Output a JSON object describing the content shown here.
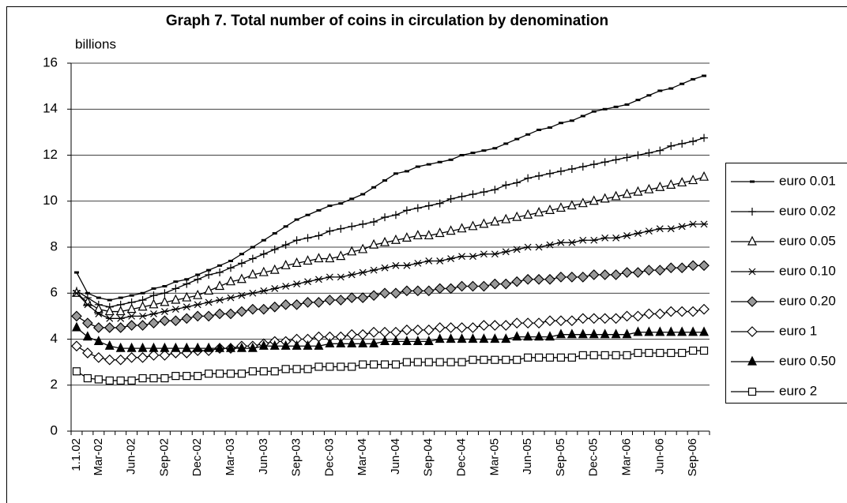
{
  "chart_data": {
    "type": "line",
    "title": "Graph 7. Total number of coins in circulation by denomination",
    "y_label": "billions",
    "categories": [
      "1.1.02",
      null,
      "Mar-02",
      null,
      null,
      "Jun-02",
      null,
      null,
      "Sep-02",
      null,
      null,
      "Dec-02",
      null,
      null,
      "Mar-03",
      null,
      null,
      "Jun-03",
      null,
      null,
      "Sep-03",
      null,
      null,
      "Dec-03",
      null,
      null,
      "Mar-04",
      null,
      null,
      "Jun-04",
      null,
      null,
      "Sep-04",
      null,
      null,
      "Dec-04",
      null,
      null,
      "Mar-05",
      null,
      null,
      "Jun-05",
      null,
      null,
      "Sep-05",
      null,
      null,
      "Dec-05",
      null,
      null,
      "Mar-06",
      null,
      null,
      "Jun-06",
      null,
      null,
      "Sep-06",
      null
    ],
    "ylim": [
      0,
      16
    ],
    "yticks": [
      0,
      2,
      4,
      6,
      8,
      10,
      12,
      14,
      16
    ],
    "grid": true,
    "legend": "right",
    "series": [
      {
        "name": "euro 0.01",
        "color": "#000000",
        "marker": "dash",
        "values": [
          6.9,
          6.0,
          5.8,
          5.7,
          5.8,
          5.9,
          6.0,
          6.2,
          6.3,
          6.5,
          6.6,
          6.8,
          7.0,
          7.2,
          7.4,
          7.7,
          8.0,
          8.3,
          8.6,
          8.9,
          9.2,
          9.4,
          9.6,
          9.8,
          9.9,
          10.1,
          10.3,
          10.6,
          10.9,
          11.2,
          11.3,
          11.5,
          11.6,
          11.7,
          11.8,
          12.0,
          12.1,
          12.2,
          12.3,
          12.5,
          12.7,
          12.9,
          13.1,
          13.2,
          13.4,
          13.5,
          13.7,
          13.9,
          14.0,
          14.1,
          14.2,
          14.4,
          14.6,
          14.8,
          14.9,
          15.1,
          15.3,
          15.45
        ]
      },
      {
        "name": "euro 0.02",
        "color": "#000000",
        "marker": "plus",
        "values": [
          6.1,
          5.8,
          5.5,
          5.4,
          5.5,
          5.6,
          5.7,
          5.9,
          6.0,
          6.2,
          6.4,
          6.6,
          6.8,
          6.9,
          7.1,
          7.3,
          7.5,
          7.7,
          7.9,
          8.1,
          8.3,
          8.4,
          8.5,
          8.7,
          8.8,
          8.9,
          9.0,
          9.1,
          9.3,
          9.4,
          9.6,
          9.7,
          9.8,
          9.9,
          10.1,
          10.2,
          10.3,
          10.4,
          10.5,
          10.7,
          10.8,
          11.0,
          11.1,
          11.2,
          11.3,
          11.4,
          11.5,
          11.6,
          11.7,
          11.8,
          11.9,
          12.0,
          12.1,
          12.2,
          12.4,
          12.5,
          12.6,
          12.75
        ]
      },
      {
        "name": "euro 0.05",
        "color": "#000000",
        "marker": "triangle-open",
        "values": [
          6.0,
          5.6,
          5.3,
          5.2,
          5.2,
          5.3,
          5.4,
          5.5,
          5.6,
          5.7,
          5.8,
          5.9,
          6.1,
          6.3,
          6.5,
          6.6,
          6.8,
          6.9,
          7.0,
          7.2,
          7.3,
          7.4,
          7.5,
          7.5,
          7.6,
          7.8,
          7.9,
          8.1,
          8.2,
          8.3,
          8.4,
          8.5,
          8.5,
          8.6,
          8.7,
          8.8,
          8.9,
          9.0,
          9.1,
          9.2,
          9.3,
          9.4,
          9.5,
          9.6,
          9.7,
          9.8,
          9.9,
          10.0,
          10.1,
          10.2,
          10.3,
          10.4,
          10.5,
          10.6,
          10.7,
          10.8,
          10.9,
          11.05
        ]
      },
      {
        "name": "euro 0.10",
        "color": "#000000",
        "marker": "star",
        "values": [
          6.0,
          5.5,
          5.1,
          4.9,
          4.9,
          5.0,
          5.0,
          5.1,
          5.2,
          5.3,
          5.4,
          5.5,
          5.6,
          5.7,
          5.8,
          5.9,
          6.0,
          6.1,
          6.2,
          6.3,
          6.4,
          6.5,
          6.6,
          6.7,
          6.7,
          6.8,
          6.9,
          7.0,
          7.1,
          7.2,
          7.2,
          7.3,
          7.4,
          7.4,
          7.5,
          7.6,
          7.6,
          7.7,
          7.7,
          7.8,
          7.9,
          8.0,
          8.0,
          8.1,
          8.2,
          8.2,
          8.3,
          8.3,
          8.4,
          8.4,
          8.5,
          8.6,
          8.7,
          8.8,
          8.8,
          8.9,
          9.0,
          9.0
        ]
      },
      {
        "name": "euro 0.20",
        "color": "#000000",
        "marker": "diamond-gray",
        "values": [
          5.0,
          4.7,
          4.5,
          4.5,
          4.5,
          4.6,
          4.6,
          4.7,
          4.8,
          4.8,
          4.9,
          5.0,
          5.0,
          5.1,
          5.1,
          5.2,
          5.3,
          5.3,
          5.4,
          5.5,
          5.5,
          5.6,
          5.6,
          5.7,
          5.7,
          5.8,
          5.8,
          5.9,
          6.0,
          6.0,
          6.1,
          6.1,
          6.1,
          6.2,
          6.2,
          6.3,
          6.3,
          6.3,
          6.4,
          6.4,
          6.5,
          6.6,
          6.6,
          6.6,
          6.7,
          6.7,
          6.7,
          6.8,
          6.8,
          6.8,
          6.9,
          6.9,
          7.0,
          7.0,
          7.1,
          7.1,
          7.2,
          7.2
        ]
      },
      {
        "name": "euro 1",
        "color": "#000000",
        "marker": "diamond-open",
        "values": [
          3.7,
          3.4,
          3.2,
          3.1,
          3.1,
          3.2,
          3.2,
          3.3,
          3.3,
          3.4,
          3.4,
          3.5,
          3.5,
          3.6,
          3.6,
          3.7,
          3.7,
          3.8,
          3.9,
          3.9,
          4.0,
          4.0,
          4.1,
          4.1,
          4.1,
          4.2,
          4.2,
          4.3,
          4.3,
          4.3,
          4.4,
          4.4,
          4.4,
          4.5,
          4.5,
          4.5,
          4.5,
          4.6,
          4.6,
          4.6,
          4.7,
          4.7,
          4.7,
          4.8,
          4.8,
          4.8,
          4.9,
          4.9,
          4.9,
          4.9,
          5.0,
          5.0,
          5.1,
          5.1,
          5.2,
          5.2,
          5.2,
          5.3
        ]
      },
      {
        "name": "euro 0.50",
        "color": "#000000",
        "marker": "triangle-filled",
        "values": [
          4.5,
          4.1,
          3.9,
          3.7,
          3.6,
          3.6,
          3.6,
          3.6,
          3.6,
          3.6,
          3.6,
          3.6,
          3.6,
          3.6,
          3.6,
          3.6,
          3.6,
          3.7,
          3.7,
          3.7,
          3.7,
          3.7,
          3.7,
          3.8,
          3.8,
          3.8,
          3.8,
          3.8,
          3.9,
          3.9,
          3.9,
          3.9,
          3.9,
          4.0,
          4.0,
          4.0,
          4.0,
          4.0,
          4.0,
          4.0,
          4.1,
          4.1,
          4.1,
          4.1,
          4.2,
          4.2,
          4.2,
          4.2,
          4.2,
          4.2,
          4.2,
          4.3,
          4.3,
          4.3,
          4.3,
          4.3,
          4.3,
          4.3
        ]
      },
      {
        "name": "euro 2",
        "color": "#000000",
        "marker": "square-open",
        "values": [
          2.6,
          2.3,
          2.25,
          2.2,
          2.2,
          2.2,
          2.3,
          2.3,
          2.3,
          2.4,
          2.4,
          2.4,
          2.5,
          2.5,
          2.5,
          2.5,
          2.6,
          2.6,
          2.6,
          2.7,
          2.7,
          2.7,
          2.8,
          2.8,
          2.8,
          2.8,
          2.9,
          2.9,
          2.9,
          2.9,
          3.0,
          3.0,
          3.0,
          3.0,
          3.0,
          3.0,
          3.1,
          3.1,
          3.1,
          3.1,
          3.1,
          3.2,
          3.2,
          3.2,
          3.2,
          3.2,
          3.3,
          3.3,
          3.3,
          3.3,
          3.3,
          3.4,
          3.4,
          3.4,
          3.4,
          3.4,
          3.5,
          3.5
        ]
      }
    ]
  }
}
